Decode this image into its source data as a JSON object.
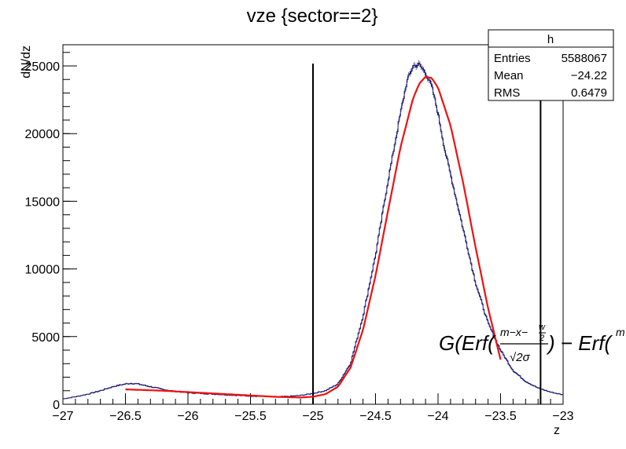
{
  "chart_data": {
    "type": "histogram",
    "title": "vze {sector==2}",
    "xlabel": "z",
    "ylabel": "dN/dz",
    "xlim": [
      -27,
      -23
    ],
    "ylim": [
      0,
      25000
    ],
    "x_ticks": [
      -27,
      -26.5,
      -26,
      -25.5,
      -25,
      -24.5,
      -24,
      -23.5,
      -23
    ],
    "x_tick_labels": [
      "−27",
      "−26.5",
      "−26",
      "−25.5",
      "−25",
      "−24.5",
      "−24",
      "−23.5",
      "−23"
    ],
    "y_ticks": [
      0,
      5000,
      10000,
      15000,
      20000,
      25000
    ],
    "y_tick_labels": [
      "0",
      "5000",
      "10000",
      "15000",
      "20000",
      "25000"
    ],
    "colors": {
      "histogram": "#1a1a6e",
      "fit": "#ee1111",
      "lines": "#000000"
    },
    "stats": {
      "name": "h",
      "rows": [
        {
          "label": "Entries",
          "value": "5588067"
        },
        {
          "label": "Mean",
          "value": "−24.22"
        },
        {
          "label": "RMS",
          "value": "0.6479"
        }
      ]
    },
    "series": [
      {
        "kind": "histogram",
        "x": [
          -27.0,
          -26.9,
          -26.8,
          -26.7,
          -26.6,
          -26.5,
          -26.45,
          -26.4,
          -26.3,
          -26.2,
          -26.1,
          -26.0,
          -25.9,
          -25.8,
          -25.7,
          -25.6,
          -25.5,
          -25.4,
          -25.3,
          -25.2,
          -25.1,
          -25.0,
          -24.9,
          -24.8,
          -24.7,
          -24.6,
          -24.5,
          -24.4,
          -24.3,
          -24.25,
          -24.2,
          -24.15,
          -24.1,
          -24.05,
          -24.0,
          -23.95,
          -23.9,
          -23.8,
          -23.7,
          -23.6,
          -23.5,
          -23.4,
          -23.3,
          -23.2,
          -23.1,
          -23.0
        ],
        "y": [
          400,
          550,
          750,
          1000,
          1300,
          1500,
          1550,
          1500,
          1300,
          1100,
          950,
          850,
          800,
          750,
          700,
          650,
          600,
          580,
          560,
          580,
          650,
          800,
          1000,
          1500,
          3000,
          6500,
          11000,
          16500,
          21500,
          23800,
          25000,
          25100,
          24500,
          23500,
          21500,
          19000,
          17000,
          13000,
          9000,
          6000,
          4000,
          2500,
          1700,
          1200,
          900,
          700
        ]
      },
      {
        "kind": "fit",
        "x": [
          -26.5,
          -26.2,
          -25.9,
          -25.6,
          -25.3,
          -25.1,
          -25.0,
          -24.9,
          -24.8,
          -24.7,
          -24.6,
          -24.5,
          -24.4,
          -24.3,
          -24.2,
          -24.15,
          -24.1,
          -24.05,
          -24.0,
          -23.9,
          -23.8,
          -23.7,
          -23.6,
          -23.5
        ],
        "y": [
          1100,
          1000,
          850,
          700,
          550,
          500,
          560,
          750,
          1300,
          2700,
          5500,
          9500,
          14300,
          19000,
          22600,
          23700,
          24200,
          24100,
          23400,
          20600,
          16400,
          11600,
          7100,
          3300
        ]
      },
      {
        "kind": "vertical-lines",
        "x": [
          -25.0,
          -23.18
        ]
      }
    ],
    "annotation": "G(Erf(…) − Erf(…"
  }
}
